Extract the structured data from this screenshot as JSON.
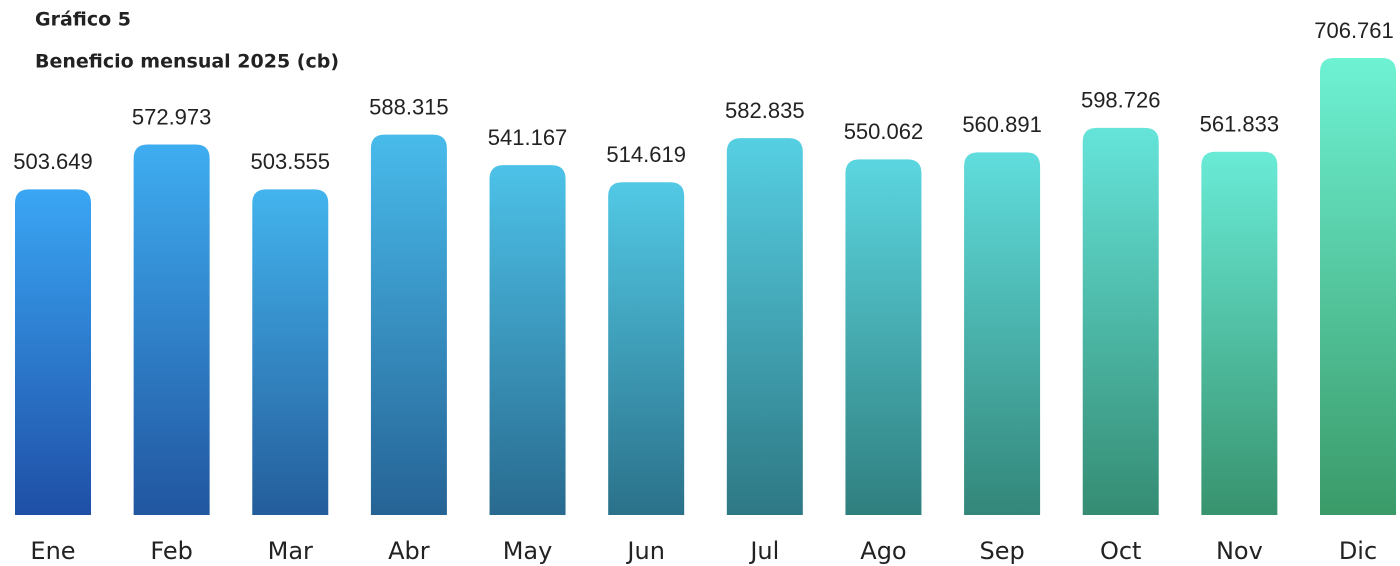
{
  "chart_data": {
    "type": "bar",
    "title": "Gráfico 5",
    "subtitle": "Beneficio mensual 2025 (cb)",
    "categories": [
      "Ene",
      "Feb",
      "Mar",
      "Abr",
      "May",
      "Jun",
      "Jul",
      "Ago",
      "Sep",
      "Oct",
      "Nov",
      "Dic"
    ],
    "values": [
      503649,
      572973,
      503555,
      588315,
      541167,
      514619,
      582835,
      550062,
      560891,
      598726,
      561833,
      706761
    ],
    "value_labels": [
      "503.649",
      "572.973",
      "503.555",
      "588.315",
      "541.167",
      "514.619",
      "582.835",
      "550.062",
      "560.891",
      "598.726",
      "561.833",
      "706.761"
    ],
    "gradient": {
      "start": [
        "#3aa6f4",
        "#1f4fa6"
      ],
      "end": [
        "#6ef2d4",
        "#3a9a68"
      ]
    }
  }
}
